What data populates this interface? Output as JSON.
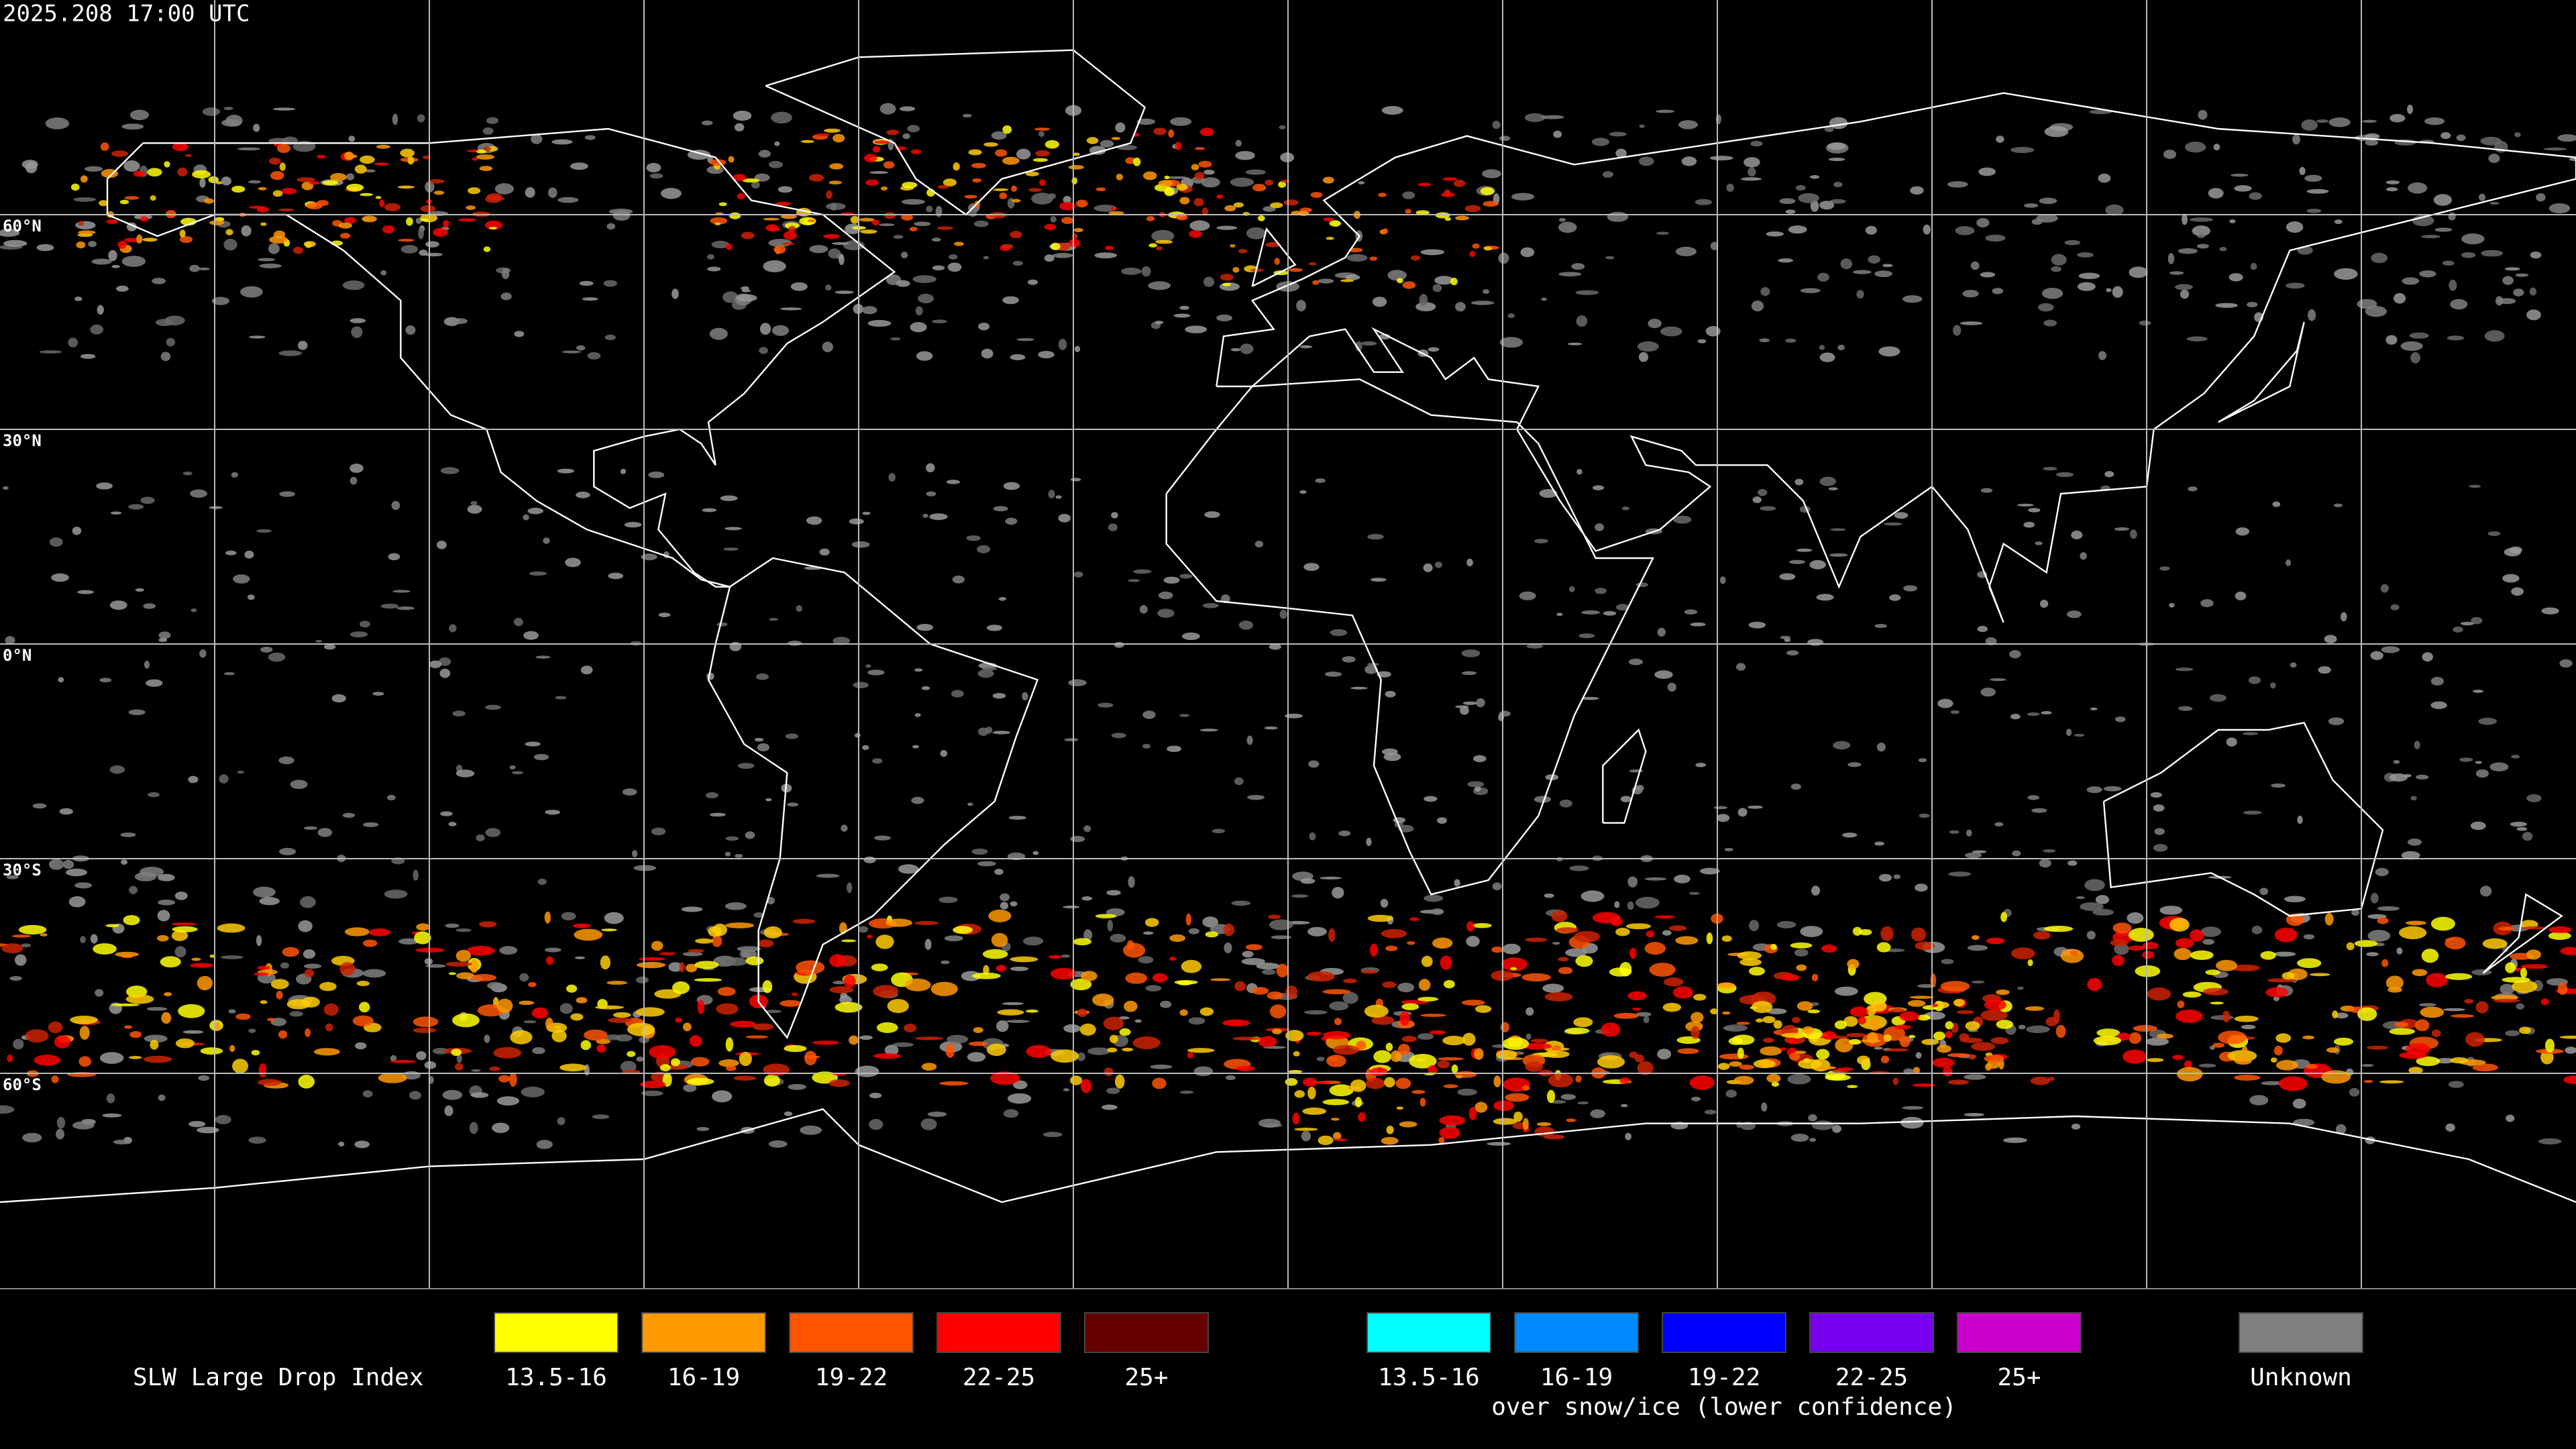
{
  "header": {
    "title": "2025.208 17:00 UTC"
  },
  "map": {
    "latitude_labels": [
      "60°N",
      "30°N",
      "0°N",
      "30°S",
      "60°S"
    ]
  },
  "legend": {
    "title": "SLW Large Drop Index",
    "groups": [
      {
        "items": [
          {
            "label": "13.5-16",
            "color": "#ffff00"
          },
          {
            "label": "16-19",
            "color": "#ff9900"
          },
          {
            "label": "19-22",
            "color": "#ff5500"
          },
          {
            "label": "22-25",
            "color": "#ff0000"
          },
          {
            "label": "25+",
            "color": "#660000"
          }
        ]
      },
      {
        "items": [
          {
            "label": "13.5-16",
            "color": "#00ffff"
          },
          {
            "label": "16-19",
            "color": "#0088ff"
          },
          {
            "label": "19-22",
            "color": "#0000ff"
          },
          {
            "label": "22-25",
            "color": "#7700ee"
          },
          {
            "label": "25+",
            "color": "#cc00cc"
          }
        ],
        "caption": "over snow/ice (lower confidence)"
      },
      {
        "items": [
          {
            "label": "Unknown",
            "color": "#808080"
          }
        ]
      }
    ]
  }
}
